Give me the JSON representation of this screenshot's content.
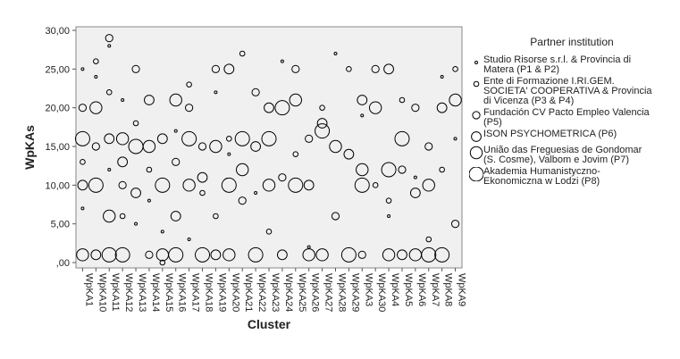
{
  "chart_data": {
    "type": "scatter",
    "x_label": "Cluster",
    "y_label": "WpKAs",
    "legend_title": "Partner institution",
    "categories": [
      "WpKA1",
      "WpKA10",
      "WpKA11",
      "WpKA12",
      "WpKA13",
      "WpKA14",
      "WpKA15",
      "WpKA16",
      "WpKA17",
      "WpKA18",
      "WpKA19",
      "WpKA20",
      "WpKA21",
      "WpKA22",
      "WpKA23",
      "WpKA24",
      "WpKA25",
      "WpKA26",
      "WpKA27",
      "WpKA28",
      "WpKA29",
      "WpKA3",
      "WpKA30",
      "WpKA4",
      "WpKA5",
      "WpKA6",
      "WpKA7",
      "WpKA8",
      "WpKA9"
    ],
    "ylim": [
      0,
      30
    ],
    "yticks": [
      {
        "value": 0,
        "label": ",00"
      },
      {
        "value": 5,
        "label": "5,00"
      },
      {
        "value": 10,
        "label": "10,00"
      },
      {
        "value": 15,
        "label": "15,00"
      },
      {
        "value": 20,
        "label": "20,00"
      },
      {
        "value": 25,
        "label": "25,00"
      },
      {
        "value": 30,
        "label": "30,00"
      }
    ],
    "color": "#000000",
    "series": [
      {
        "name": "Studio Risorse s.r.l. & Provincia di Matera (P1 & P2)",
        "x": [
          "WpKA1",
          "WpKA1",
          "WpKA10",
          "WpKA11",
          "WpKA11",
          "WpKA12",
          "WpKA13",
          "WpKA14",
          "WpKA16",
          "WpKA17",
          "WpKA19",
          "WpKA20",
          "WpKA22",
          "WpKA24",
          "WpKA26",
          "WpKA28",
          "WpKA3",
          "WpKA4",
          "WpKA6",
          "WpKA8",
          "WpKA9",
          "WpKA15"
        ],
        "values": [
          25,
          7,
          24,
          28,
          12,
          21,
          5,
          8,
          17,
          3,
          22,
          14,
          9,
          26,
          2,
          27,
          19,
          6,
          11,
          24,
          16,
          4
        ]
      },
      {
        "name": "Ente di Formazione I.RI.GEM. SOCIETA' COOPERATIVA & Provincia di Vicenza (P3 & P4)",
        "x": [
          "WpKA1",
          "WpKA10",
          "WpKA11",
          "WpKA12",
          "WpKA13",
          "WpKA14",
          "WpKA15",
          "WpKA17",
          "WpKA18",
          "WpKA20",
          "WpKA21",
          "WpKA23",
          "WpKA25",
          "WpKA27",
          "WpKA29",
          "WpKA30",
          "WpKA4",
          "WpKA5",
          "WpKA7",
          "WpKA8",
          "WpKA9",
          "WpKA19"
        ],
        "values": [
          13,
          26,
          22,
          6,
          18,
          12,
          0,
          23,
          9,
          16,
          27,
          4,
          14,
          20,
          25,
          10,
          8,
          21,
          3,
          12,
          25,
          6
        ]
      },
      {
        "name": "Fundación CV Pacto Empleo Valencia (P5)",
        "x": [
          "WpKA1",
          "WpKA10",
          "WpKA12",
          "WpKA13",
          "WpKA14",
          "WpKA16",
          "WpKA17",
          "WpKA18",
          "WpKA19",
          "WpKA21",
          "WpKA22",
          "WpKA24",
          "WpKA25",
          "WpKA26",
          "WpKA28",
          "WpKA3",
          "WpKA30",
          "WpKA5",
          "WpKA6",
          "WpKA7",
          "WpKA9",
          "WpKA11"
        ],
        "values": [
          20,
          15,
          10,
          25,
          1,
          13,
          20,
          15,
          25,
          8,
          22,
          11,
          25,
          16,
          6,
          1,
          25,
          12,
          20,
          15,
          5,
          29
        ]
      },
      {
        "name": "ISON PSYCHOMETRICA (P6)",
        "x": [
          "WpKA1",
          "WpKA10",
          "WpKA11",
          "WpKA13",
          "WpKA14",
          "WpKA15",
          "WpKA16",
          "WpKA18",
          "WpKA19",
          "WpKA20",
          "WpKA22",
          "WpKA23",
          "WpKA24",
          "WpKA26",
          "WpKA27",
          "WpKA29",
          "WpKA3",
          "WpKA4",
          "WpKA5",
          "WpKA6",
          "WpKA8",
          "WpKA12"
        ],
        "values": [
          10,
          1,
          16,
          9,
          21,
          16,
          6,
          11,
          1,
          25,
          15,
          20,
          1,
          10,
          18,
          14,
          21,
          25,
          1,
          9,
          20,
          13
        ]
      },
      {
        "name": "União das Freguesias de Gondomar (S. Cosme), Valbom e Jovim (P7)",
        "x": [
          "WpKA1",
          "WpKA10",
          "WpKA11",
          "WpKA12",
          "WpKA14",
          "WpKA15",
          "WpKA16",
          "WpKA17",
          "WpKA19",
          "WpKA20",
          "WpKA21",
          "WpKA23",
          "WpKA25",
          "WpKA26",
          "WpKA27",
          "WpKA28",
          "WpKA3",
          "WpKA30",
          "WpKA4",
          "WpKA6",
          "WpKA7",
          "WpKA9"
        ],
        "values": [
          1,
          20,
          6,
          16,
          15,
          1,
          21,
          10,
          15,
          1,
          12,
          10,
          21,
          1,
          1,
          15,
          12,
          20,
          1,
          1,
          10,
          21
        ]
      },
      {
        "name": "Akademia Humanistyczno-Ekonomiczna w Lodzi (P8)",
        "x": [
          "WpKA1",
          "WpKA10",
          "WpKA11",
          "WpKA12",
          "WpKA13",
          "WpKA15",
          "WpKA16",
          "WpKA17",
          "WpKA18",
          "WpKA20",
          "WpKA21",
          "WpKA22",
          "WpKA23",
          "WpKA24",
          "WpKA25",
          "WpKA27",
          "WpKA29",
          "WpKA3",
          "WpKA4",
          "WpKA5",
          "WpKA7",
          "WpKA8"
        ],
        "values": [
          16,
          10,
          1,
          1,
          15,
          10,
          1,
          16,
          1,
          10,
          16,
          1,
          16,
          20,
          10,
          17,
          1,
          10,
          12,
          16,
          1,
          1
        ]
      }
    ]
  }
}
